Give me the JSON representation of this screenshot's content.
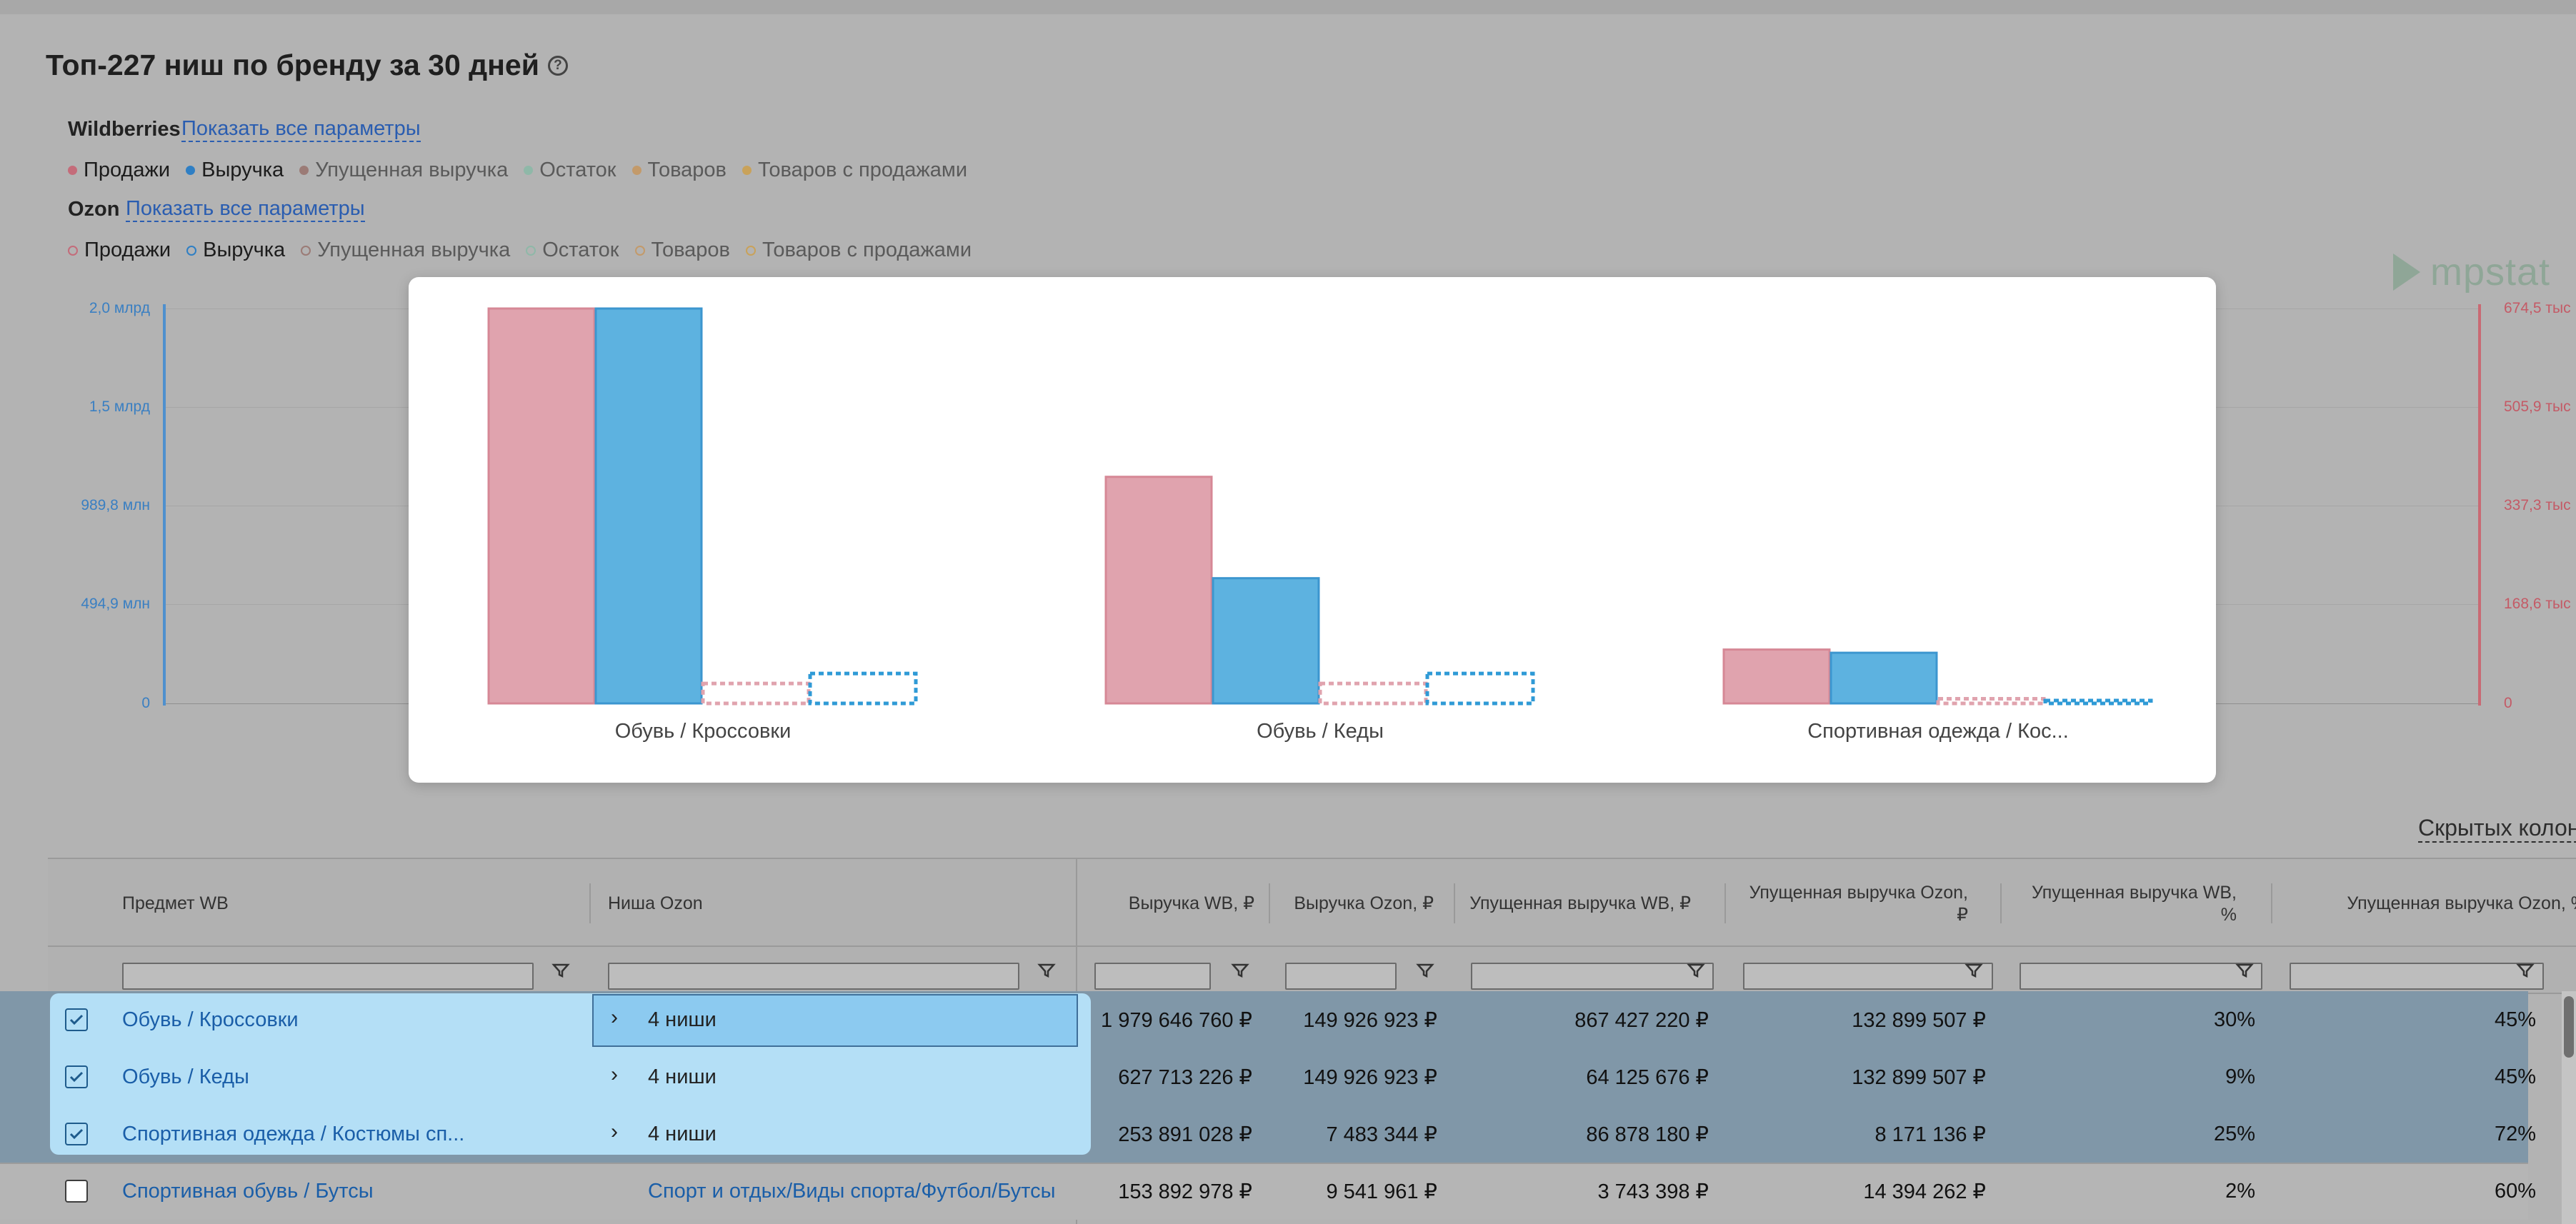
{
  "title": "Топ-227 ниш по бренду за 30 дней",
  "help_icon": "?",
  "wildberries": {
    "label": "Wildberries",
    "show_all": "Показать все параметры",
    "legend": [
      {
        "label": "Продажи",
        "color": "#c46c7a",
        "active": true
      },
      {
        "label": "Выручка",
        "color": "#2f7fc4",
        "active": true
      },
      {
        "label": "Упущенная выручка",
        "color": "#9b7b76",
        "active": false
      },
      {
        "label": "Остаток",
        "color": "#8fb8a8",
        "active": false
      },
      {
        "label": "Товаров",
        "color": "#c39a6a",
        "active": false
      },
      {
        "label": "Товаров с продажами",
        "color": "#c9a25a",
        "active": false
      }
    ]
  },
  "ozon": {
    "label": "Ozon",
    "show_all": "Показать все параметры",
    "legend": [
      {
        "label": "Продажи",
        "color": "#c46c7a",
        "active": true
      },
      {
        "label": "Выручка",
        "color": "#2f7fc4",
        "active": true
      },
      {
        "label": "Упущенная выручка",
        "color": "#9b7b76",
        "active": false
      },
      {
        "label": "Остаток",
        "color": "#8fb8a8",
        "active": false
      },
      {
        "label": "Товаров",
        "color": "#c39a6a",
        "active": false
      },
      {
        "label": "Товаров с продажами",
        "color": "#c9a25a",
        "active": false
      }
    ]
  },
  "logo_text": "mpstat",
  "chart_data": {
    "type": "bar",
    "categories": [
      "Обувь / Кроссовки",
      "Обувь / Кеды",
      "Спортивная одежда / Кос..."
    ],
    "y_left_ticks": [
      "2,0 млрд",
      "1,5 млрд",
      "989,8 млн",
      "494,9 млн",
      "0"
    ],
    "y_right_ticks": [
      "674,5 тыс",
      "505,9 тыс",
      "337,3 тыс",
      "168,6 тыс",
      "0"
    ],
    "y_left_range": [
      0,
      1979646760
    ],
    "y_right_range": [
      0,
      674500
    ],
    "grid": true,
    "series": [
      {
        "name": "Продажи",
        "marketplace": "Wildberries",
        "axis": "right",
        "color": "#e0a3ae",
        "values": [
          674500,
          387000,
          92000
        ]
      },
      {
        "name": "Выручка",
        "marketplace": "Wildberries",
        "axis": "left",
        "color": "#5db2e0",
        "values": [
          1979646760,
          627713226,
          253891028
        ]
      },
      {
        "name": "Продажи",
        "marketplace": "Ozon",
        "axis": "right",
        "color": "#e0a3ae",
        "values": [
          34000,
          34000,
          8000
        ],
        "dashed": true
      },
      {
        "name": "Выручка",
        "marketplace": "Ozon",
        "axis": "left",
        "color": "#2f9ad6",
        "values": [
          149926923,
          149926923,
          7483344
        ],
        "dashed": true
      }
    ]
  },
  "hidden_columns_link": "Скрытых колоно",
  "table": {
    "headers": [
      "Предмет WB",
      "Ниша Ozon",
      "Выручка WB, ₽",
      "Выручка Ozon, ₽",
      "Упущенная выручка WB, ₽",
      "Упущенная выручка Ozon, ₽",
      "Упущенная выручка WB, %",
      "Упущенная выручка Ozon, %"
    ],
    "rows": [
      {
        "checked": true,
        "subject": "Обувь / Кроссовки",
        "niche": "4 ниши",
        "rev_wb": "1 979 646 760 ₽",
        "rev_ozon": "149 926 923 ₽",
        "lost_wb": "867 427 220 ₽",
        "lost_ozon": "132 899 507 ₽",
        "lost_wb_pct": "30%",
        "lost_ozon_pct": "45%"
      },
      {
        "checked": true,
        "subject": "Обувь / Кеды",
        "niche": "4 ниши",
        "rev_wb": "627 713 226 ₽",
        "rev_ozon": "149 926 923 ₽",
        "lost_wb": "64 125 676 ₽",
        "lost_ozon": "132 899 507 ₽",
        "lost_wb_pct": "9%",
        "lost_ozon_pct": "45%"
      },
      {
        "checked": true,
        "subject": "Спортивная одежда / Костюмы сп...",
        "niche": "4 ниши",
        "rev_wb": "253 891 028 ₽",
        "rev_ozon": "7 483 344 ₽",
        "lost_wb": "86 878 180 ₽",
        "lost_ozon": "8 171 136 ₽",
        "lost_wb_pct": "25%",
        "lost_ozon_pct": "72%"
      },
      {
        "checked": false,
        "subject": "Спортивная обувь / Бутсы",
        "niche": "Спорт и отдых/Виды спорта/Футбол/Бутсы",
        "rev_wb": "153 892 978 ₽",
        "rev_ozon": "9 541 961 ₽",
        "lost_wb": "3 743 398 ₽",
        "lost_ozon": "14 394 262 ₽",
        "lost_wb_pct": "2%",
        "lost_ozon_pct": "60%"
      }
    ]
  }
}
